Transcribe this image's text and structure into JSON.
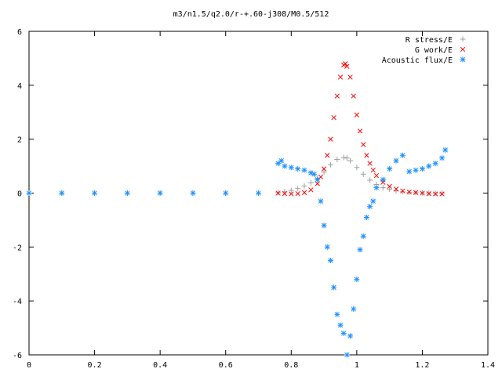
{
  "chart_data": {
    "type": "scatter",
    "title": "m3/n1.5/q2.0/r-+.60-j308/M0.5/512",
    "xlabel": "",
    "ylabel": "",
    "xlim": [
      0,
      1.4
    ],
    "ylim": [
      -6,
      6
    ],
    "xticks": [
      "0",
      "0.2",
      "0.4",
      "0.6",
      "0.8",
      "1",
      "1.2",
      "1.4"
    ],
    "yticks": [
      "6",
      "4",
      "2",
      "0",
      "-2",
      "-4",
      "-6"
    ],
    "grid": false,
    "legend_position": "top-right",
    "series": [
      {
        "name": "R stress/E",
        "marker": "plus",
        "color": "#a0a0a0",
        "x": [
          0.0,
          0.1,
          0.2,
          0.3,
          0.4,
          0.5,
          0.6,
          0.7,
          0.76,
          0.78,
          0.8,
          0.82,
          0.84,
          0.86,
          0.88,
          0.9,
          0.92,
          0.94,
          0.96,
          0.97,
          0.98,
          1.0,
          1.02,
          1.04,
          1.06,
          1.08,
          1.1,
          1.12,
          1.14,
          1.16,
          1.18,
          1.2,
          1.22,
          1.24,
          1.26
        ],
        "y": [
          0.0,
          0.0,
          0.0,
          0.0,
          0.0,
          0.0,
          0.0,
          0.0,
          0.02,
          0.05,
          0.1,
          0.17,
          0.26,
          0.38,
          0.55,
          0.78,
          1.05,
          1.25,
          1.32,
          1.3,
          1.2,
          0.95,
          0.7,
          0.48,
          0.32,
          0.2,
          0.14,
          0.08,
          0.05,
          0.03,
          0.02,
          0.01,
          0.0,
          0.0,
          0.0
        ]
      },
      {
        "name": "G work/E",
        "marker": "cross",
        "color": "#ff0000",
        "x": [
          0.76,
          0.78,
          0.8,
          0.82,
          0.84,
          0.86,
          0.88,
          0.89,
          0.9,
          0.91,
          0.92,
          0.93,
          0.94,
          0.95,
          0.96,
          0.965,
          0.97,
          0.98,
          0.99,
          1.0,
          1.01,
          1.02,
          1.03,
          1.04,
          1.05,
          1.06,
          1.08,
          1.1,
          1.12,
          1.14,
          1.16,
          1.18,
          1.2,
          1.22,
          1.24,
          1.26
        ],
        "y": [
          0.0,
          -0.02,
          -0.03,
          -0.02,
          0.02,
          0.12,
          0.35,
          0.6,
          0.9,
          1.4,
          2.0,
          2.8,
          3.6,
          4.3,
          4.75,
          4.8,
          4.7,
          4.3,
          3.6,
          2.9,
          2.3,
          1.8,
          1.4,
          1.1,
          0.85,
          0.65,
          0.4,
          0.25,
          0.15,
          0.08,
          0.04,
          0.02,
          0.0,
          -0.02,
          -0.03,
          -0.03
        ]
      },
      {
        "name": "Acoustic flux/E",
        "marker": "star",
        "color": "#1e90ff",
        "x": [
          0.0,
          0.1,
          0.2,
          0.3,
          0.4,
          0.5,
          0.6,
          0.7,
          0.76,
          0.77,
          0.78,
          0.8,
          0.82,
          0.84,
          0.86,
          0.87,
          0.88,
          0.89,
          0.9,
          0.91,
          0.92,
          0.93,
          0.94,
          0.95,
          0.96,
          0.97,
          0.98,
          0.99,
          1.0,
          1.01,
          1.02,
          1.03,
          1.04,
          1.05,
          1.06,
          1.08,
          1.1,
          1.12,
          1.14,
          1.16,
          1.18,
          1.2,
          1.22,
          1.24,
          1.26,
          1.27
        ],
        "y": [
          0.0,
          0.0,
          0.0,
          0.0,
          0.0,
          0.0,
          0.0,
          0.0,
          1.1,
          1.2,
          1.0,
          0.95,
          0.9,
          0.85,
          0.75,
          0.7,
          0.5,
          -0.3,
          -1.2,
          -2.0,
          -2.5,
          -3.5,
          -4.5,
          -4.9,
          -5.2,
          -6.0,
          -5.3,
          -4.3,
          -3.2,
          -2.1,
          -1.6,
          -0.9,
          -0.5,
          -0.3,
          0.2,
          0.5,
          0.9,
          1.2,
          1.4,
          0.8,
          0.85,
          0.9,
          1.0,
          1.1,
          1.3,
          1.6
        ]
      }
    ]
  }
}
